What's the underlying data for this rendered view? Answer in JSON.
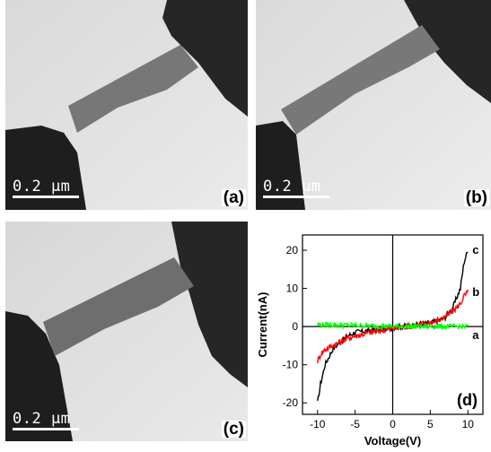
{
  "figure": {
    "panels": [
      {
        "label": "a",
        "scale_bar": "0.2 μm"
      },
      {
        "label": "b",
        "scale_bar": "0.2 μm"
      },
      {
        "label": "c",
        "scale_bar": "0.2 μm"
      }
    ]
  },
  "chart_data": {
    "type": "line",
    "panel_label": "(d)",
    "xlabel": "Voltage(V)",
    "ylabel": "Current(nA)",
    "xlim": [
      -12,
      12
    ],
    "ylim": [
      -23,
      24
    ],
    "xticks": [
      -10,
      -5,
      0,
      5,
      10
    ],
    "yticks": [
      -20,
      -10,
      0,
      10,
      20
    ],
    "series": [
      {
        "name": "c",
        "color": "#000000",
        "x": [
          -10,
          -9.6,
          -9,
          -8,
          -7,
          -6,
          -5,
          -3,
          0,
          3,
          5,
          6,
          7,
          8,
          9,
          9.5,
          10
        ],
        "y": [
          -20,
          -15,
          -10,
          -6,
          -4,
          -2.5,
          -1.5,
          -1,
          -0.3,
          0.5,
          1,
          1.5,
          2.5,
          5,
          10,
          17,
          20
        ]
      },
      {
        "name": "b",
        "color": "#ff0000",
        "x": [
          -10,
          -9.5,
          -9,
          -8,
          -7,
          -6,
          -5,
          -3,
          0,
          3,
          5,
          6,
          7,
          8,
          9,
          9.5,
          10
        ],
        "y": [
          -9,
          -7,
          -6,
          -5,
          -4,
          -3,
          -2.5,
          -1.5,
          -0.5,
          0.3,
          1,
          1.5,
          2.5,
          4,
          6,
          8,
          9
        ]
      },
      {
        "name": "a",
        "color": "#00ff00",
        "x": [
          -10,
          -5,
          0,
          5,
          10
        ],
        "y": [
          0.5,
          0.3,
          0,
          0,
          0
        ]
      }
    ]
  }
}
